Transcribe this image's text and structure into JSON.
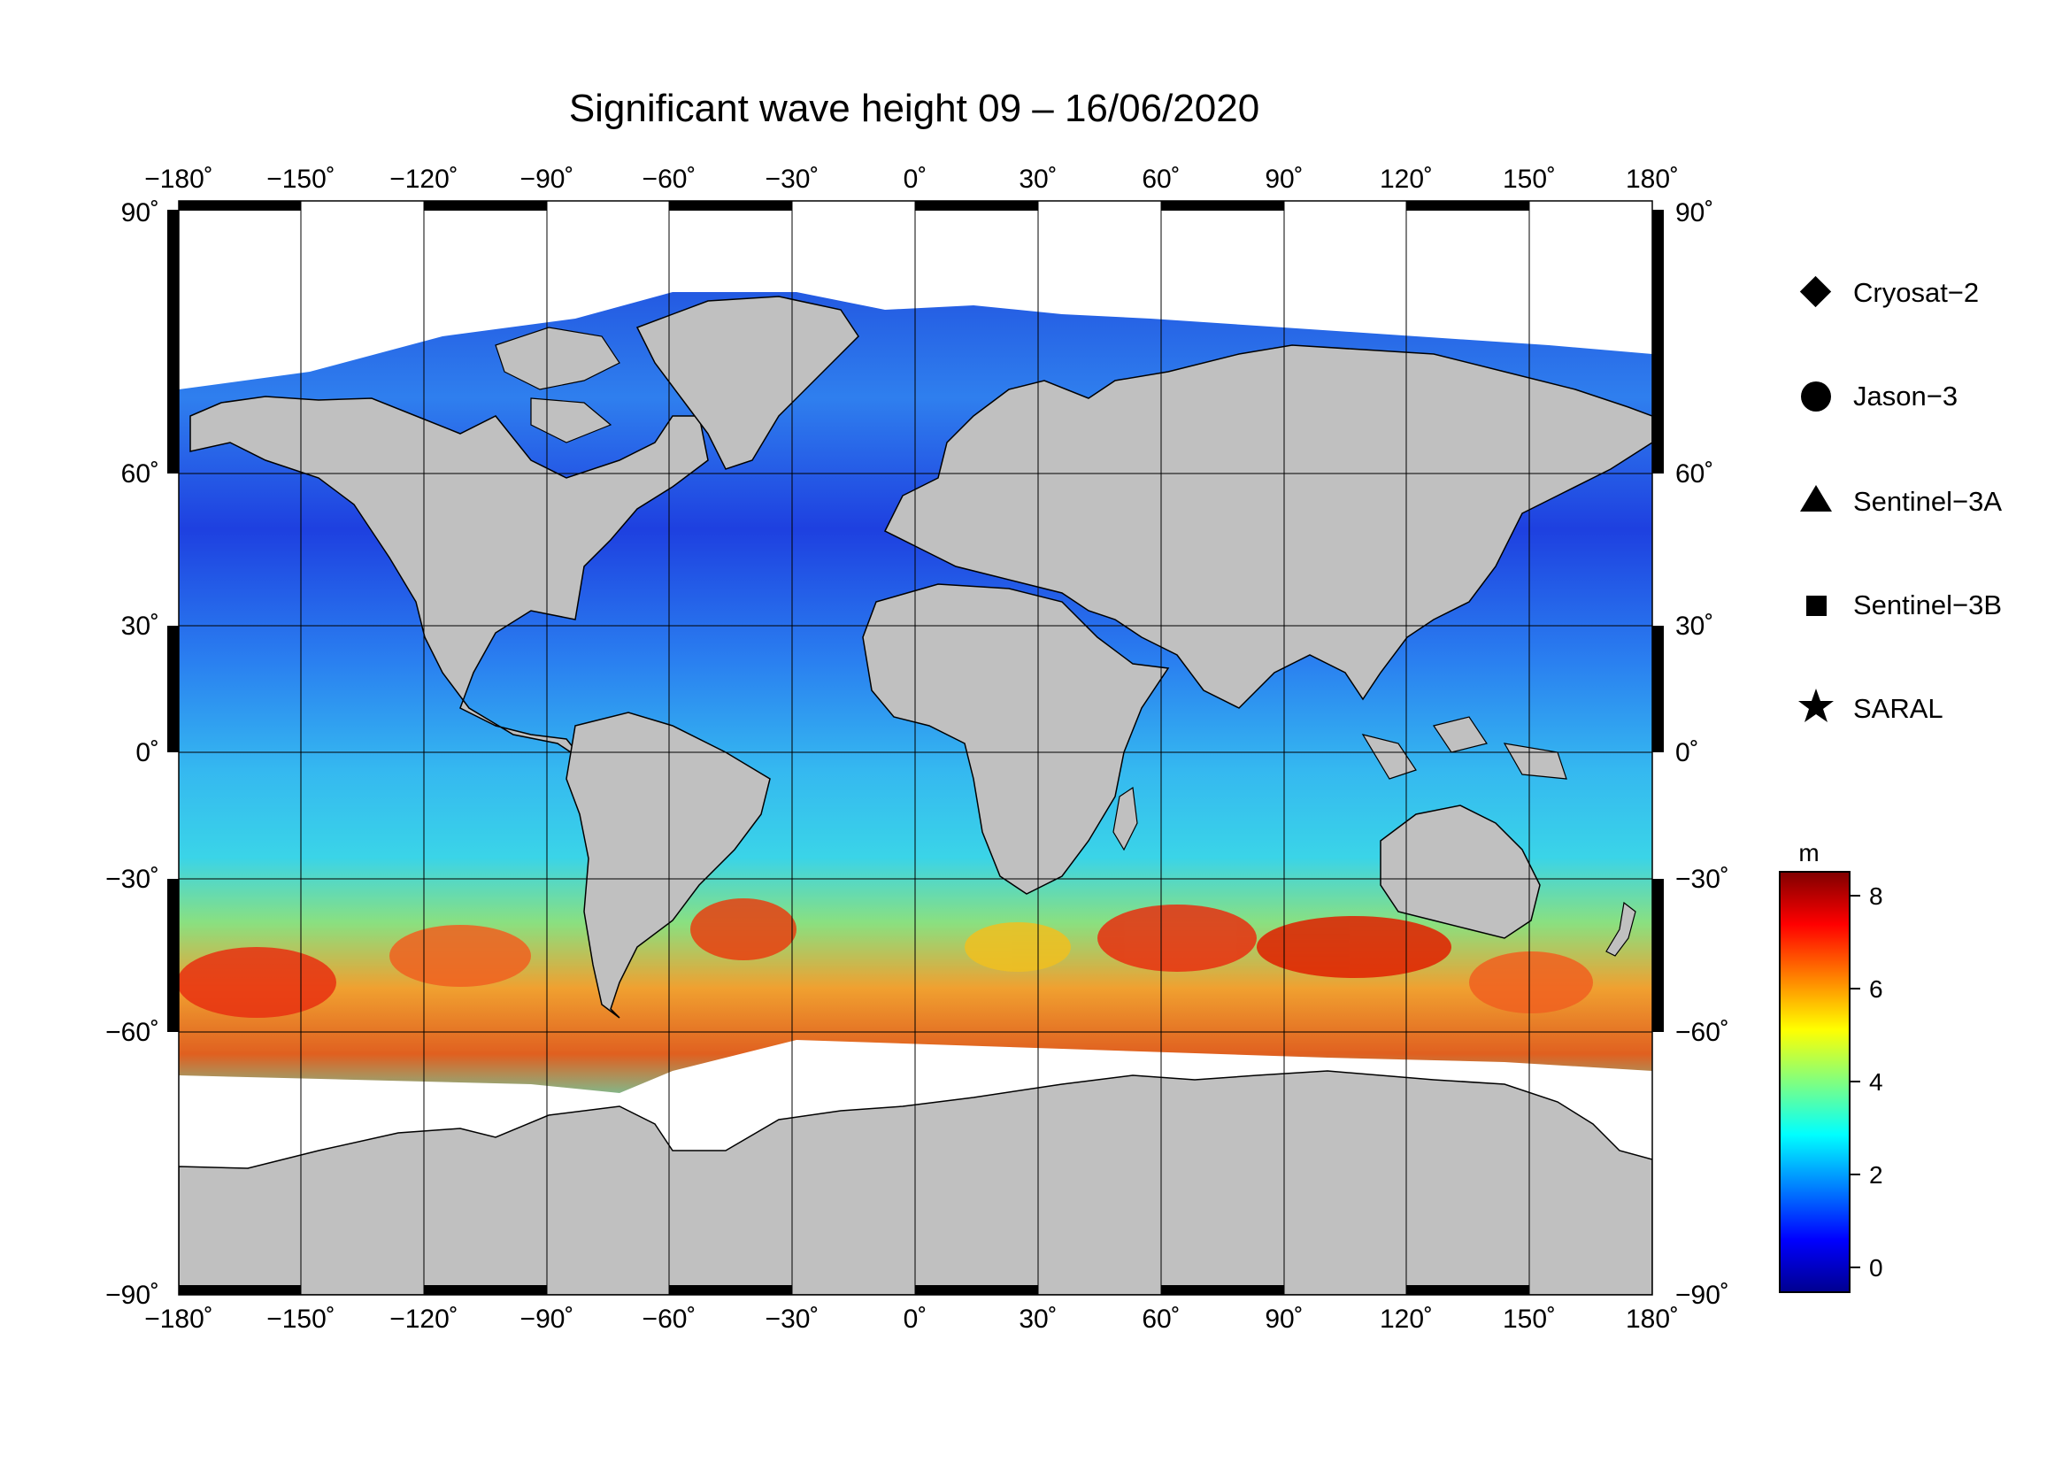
{
  "title": "Significant wave height 09 – 16/06/2020",
  "axes": {
    "lon_ticks": [
      "−180˚",
      "−150˚",
      "−120˚",
      "−90˚",
      "−60˚",
      "−30˚",
      "0˚",
      "30˚",
      "60˚",
      "90˚",
      "120˚",
      "150˚",
      "180˚"
    ],
    "lat_ticks_left": [
      "90˚",
      "60˚",
      "30˚",
      "0˚",
      "−30˚",
      "−60˚",
      "−90˚"
    ],
    "lat_ticks_right": [
      "90˚",
      "60˚",
      "30˚",
      "0˚",
      "−30˚",
      "−60˚",
      "−90˚"
    ],
    "lon_range": [
      -180,
      180
    ],
    "lat_range": [
      -90,
      90
    ],
    "grid": true
  },
  "legend": {
    "placement": "right",
    "items": [
      {
        "label": "Cryosat−2",
        "symbol": "diamond-icon"
      },
      {
        "label": "Jason−3",
        "symbol": "circle-icon"
      },
      {
        "label": "Sentinel−3A",
        "symbol": "triangle-icon"
      },
      {
        "label": "Sentinel−3B",
        "symbol": "square-icon"
      },
      {
        "label": "SARAL",
        "symbol": "star-icon"
      }
    ]
  },
  "colorbar": {
    "unit": "m",
    "ticks": [
      "8",
      "6",
      "4",
      "2",
      "0"
    ],
    "range": [
      -0.7,
      8.6
    ],
    "colors": [
      "#00008f",
      "#0000ff",
      "#0080ff",
      "#00ffff",
      "#80ff80",
      "#ffff00",
      "#ff8000",
      "#ff0000",
      "#800000"
    ]
  },
  "colors": {
    "land": "#c0c0c0",
    "ice": "#ffffff",
    "low_wave": "#1030e0",
    "mid_wave": "#20c0f0",
    "high_wave": "#f02000"
  }
}
